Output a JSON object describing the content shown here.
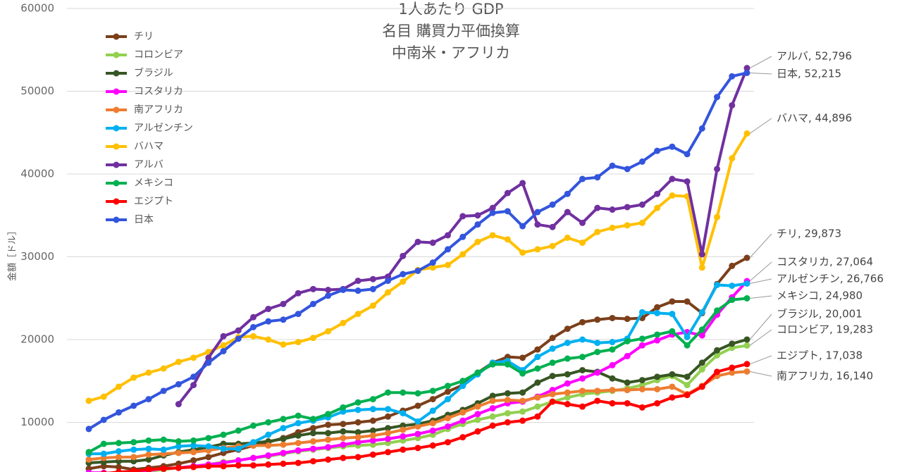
{
  "chart_data": {
    "type": "line",
    "title_lines": [
      "1人あたり GDP",
      "名目 購買力平価換算",
      "中南米・アフリカ"
    ],
    "y_label": "金額［ドル］",
    "ylim": [
      4000,
      60000
    ],
    "yticks": [
      10000,
      20000,
      30000,
      40000,
      50000,
      60000
    ],
    "grid": true,
    "legend": "upper left",
    "categories": [
      null,
      null,
      null,
      null,
      null,
      null,
      null,
      null,
      null,
      null,
      null,
      null,
      null,
      null,
      null,
      null,
      null,
      null,
      null,
      null,
      null,
      null,
      null,
      null,
      null,
      null,
      null,
      null,
      null,
      null,
      null,
      null,
      null,
      null,
      null,
      null,
      null,
      null,
      null,
      null,
      null,
      null,
      null,
      null,
      null
    ],
    "series": [
      {
        "name": "チリ",
        "color": "#7b3f1a",
        "values": [
          4400,
          4700,
          4600,
          4300,
          4500,
          4700,
          5000,
          5400,
          5800,
          6300,
          6700,
          7200,
          7600,
          8100,
          8800,
          9300,
          9700,
          9800,
          10000,
          10200,
          10700,
          11400,
          12000,
          12800,
          13700,
          14500,
          16000,
          17200,
          17900,
          17800,
          18800,
          20200,
          21300,
          22100,
          22400,
          22600,
          22500,
          22600,
          23900,
          24600,
          24600,
          23200,
          26700,
          28900,
          29873
        ],
        "value_labels": [
          null,
          null,
          null,
          null,
          null,
          null,
          null,
          null,
          null,
          null,
          null,
          null,
          null,
          null,
          null,
          null,
          null,
          null,
          null,
          null,
          null,
          null,
          null,
          null,
          null,
          null,
          null,
          null,
          null,
          null,
          null,
          null,
          null,
          null,
          null,
          null,
          null,
          null,
          null,
          null,
          null,
          null,
          null,
          null,
          "チリ, 29,873"
        ]
      },
      {
        "name": "コロンビア",
        "color": "#92d050",
        "values": [
          3600,
          3800,
          3900,
          4000,
          4100,
          4300,
          4500,
          4700,
          4900,
          5200,
          5400,
          5700,
          5900,
          6200,
          6500,
          6700,
          6900,
          7100,
          7200,
          7300,
          7500,
          7800,
          8100,
          8500,
          9200,
          9800,
          10300,
          10700,
          11100,
          11300,
          11900,
          12500,
          13000,
          13400,
          13600,
          13800,
          14100,
          14500,
          15100,
          15600,
          14500,
          16400,
          18100,
          19000,
          19283
        ],
        "value_labels": [
          null,
          null,
          null,
          null,
          null,
          null,
          null,
          null,
          null,
          null,
          null,
          null,
          null,
          null,
          null,
          null,
          null,
          null,
          null,
          null,
          null,
          null,
          null,
          null,
          null,
          null,
          null,
          null,
          null,
          null,
          null,
          null,
          null,
          null,
          null,
          null,
          null,
          null,
          null,
          null,
          null,
          null,
          null,
          null,
          "コロンビア, 19,283"
        ]
      },
      {
        "name": "ブラジル",
        "color": "#375623",
        "values": [
          5100,
          5200,
          5300,
          5300,
          5500,
          6000,
          6400,
          6700,
          7000,
          7400,
          7400,
          7500,
          7700,
          8000,
          8400,
          8700,
          8700,
          8900,
          8800,
          9000,
          9300,
          9600,
          9800,
          10200,
          10900,
          11500,
          12300,
          13200,
          13500,
          13600,
          14800,
          15600,
          15800,
          16300,
          16100,
          15300,
          14800,
          15100,
          15500,
          15800,
          15500,
          17200,
          18700,
          19500,
          20001
        ],
        "value_labels": [
          null,
          null,
          null,
          null,
          null,
          null,
          null,
          null,
          null,
          null,
          null,
          null,
          null,
          null,
          null,
          null,
          null,
          null,
          null,
          null,
          null,
          null,
          null,
          null,
          null,
          null,
          null,
          null,
          null,
          null,
          null,
          null,
          null,
          null,
          null,
          null,
          null,
          null,
          null,
          null,
          null,
          null,
          null,
          null,
          "ブラジル, 20,001"
        ]
      },
      {
        "name": "コスタリカ",
        "color": "#ff00ff",
        "values": [
          3900,
          3900,
          3800,
          4000,
          4200,
          4400,
          4500,
          4700,
          4900,
          5100,
          5400,
          5700,
          6000,
          6300,
          6600,
          6800,
          7000,
          7300,
          7600,
          7800,
          8000,
          8300,
          8600,
          9000,
          9500,
          10200,
          11000,
          11700,
          12300,
          12500,
          13100,
          13900,
          14700,
          15300,
          16000,
          16900,
          18000,
          19300,
          19900,
          20600,
          20900,
          20500,
          23000,
          25100,
          27064
        ],
        "value_labels": [
          null,
          null,
          null,
          null,
          null,
          null,
          null,
          null,
          null,
          null,
          null,
          null,
          null,
          null,
          null,
          null,
          null,
          null,
          null,
          null,
          null,
          null,
          null,
          null,
          null,
          null,
          null,
          null,
          null,
          null,
          null,
          null,
          null,
          null,
          null,
          null,
          null,
          null,
          null,
          null,
          null,
          null,
          null,
          null,
          "コスタリカ, 27,064"
        ]
      },
      {
        "name": "南アフリカ",
        "color": "#ed7d31",
        "values": [
          5500,
          5700,
          5800,
          5800,
          6100,
          6200,
          6300,
          6400,
          6600,
          6900,
          7100,
          7200,
          7200,
          7300,
          7500,
          7700,
          7900,
          8100,
          8200,
          8400,
          8700,
          9100,
          9500,
          9900,
          10500,
          11200,
          11900,
          12600,
          12700,
          12600,
          13000,
          13400,
          13600,
          13800,
          13800,
          13900,
          13900,
          14000,
          14000,
          14300,
          13400,
          14400,
          15600,
          16000,
          16140
        ],
        "value_labels": [
          null,
          null,
          null,
          null,
          null,
          null,
          null,
          null,
          null,
          null,
          null,
          null,
          null,
          null,
          null,
          null,
          null,
          null,
          null,
          null,
          null,
          null,
          null,
          null,
          null,
          null,
          null,
          null,
          null,
          null,
          null,
          null,
          null,
          null,
          null,
          null,
          null,
          null,
          null,
          null,
          null,
          null,
          null,
          null,
          "南アフリカ, 16,140"
        ]
      },
      {
        "name": "アルゼンチン",
        "color": "#00b0f0",
        "values": [
          6200,
          6200,
          6500,
          6700,
          6800,
          6700,
          7100,
          7200,
          7100,
          6800,
          6800,
          7600,
          8500,
          9300,
          9900,
          10200,
          10600,
          11300,
          11500,
          11600,
          11600,
          11100,
          10100,
          11400,
          12800,
          14400,
          15800,
          17200,
          17400,
          16300,
          17900,
          18900,
          19600,
          20000,
          19600,
          19700,
          20100,
          23300,
          23200,
          23100,
          20300,
          23300,
          26600,
          26500,
          26766
        ],
        "value_labels": [
          null,
          null,
          null,
          null,
          null,
          null,
          null,
          null,
          null,
          null,
          null,
          null,
          null,
          null,
          null,
          null,
          null,
          null,
          null,
          null,
          null,
          null,
          null,
          null,
          null,
          null,
          null,
          null,
          null,
          null,
          null,
          null,
          null,
          null,
          null,
          null,
          null,
          null,
          null,
          null,
          null,
          null,
          null,
          null,
          "アルゼンチン, 26,766"
        ]
      },
      {
        "name": "バハマ",
        "color": "#ffc000",
        "values": [
          12600,
          13100,
          14300,
          15400,
          16000,
          16500,
          17300,
          17800,
          18500,
          19300,
          20300,
          20400,
          20000,
          19400,
          19700,
          20200,
          21000,
          22000,
          23100,
          24100,
          25700,
          27000,
          28400,
          28700,
          29000,
          30300,
          31800,
          32600,
          32100,
          30500,
          30900,
          31300,
          32300,
          31700,
          33000,
          33500,
          33800,
          34100,
          35900,
          37400,
          37300,
          28700,
          34800,
          41900,
          44896
        ],
        "value_labels": [
          null,
          null,
          null,
          null,
          null,
          null,
          null,
          null,
          null,
          null,
          null,
          null,
          null,
          null,
          null,
          null,
          null,
          null,
          null,
          null,
          null,
          null,
          null,
          null,
          null,
          null,
          null,
          null,
          null,
          null,
          null,
          null,
          null,
          null,
          null,
          null,
          null,
          null,
          null,
          null,
          null,
          null,
          null,
          null,
          "バハマ, 44,896"
        ]
      },
      {
        "name": "アルバ",
        "color": "#7030a0",
        "values": [
          null,
          null,
          null,
          null,
          null,
          null,
          12200,
          14500,
          17800,
          20400,
          21100,
          22700,
          23700,
          24300,
          25600,
          26100,
          26000,
          26100,
          27100,
          27300,
          27600,
          30100,
          31800,
          31700,
          32600,
          34900,
          35000,
          35900,
          37700,
          38900,
          33900,
          33600,
          35400,
          34100,
          35900,
          35700,
          36000,
          36300,
          37600,
          39400,
          39100,
          30300,
          40600,
          48300,
          52796
        ],
        "value_labels": [
          null,
          null,
          null,
          null,
          null,
          null,
          null,
          null,
          null,
          null,
          null,
          null,
          null,
          null,
          null,
          null,
          null,
          null,
          null,
          null,
          null,
          null,
          null,
          null,
          null,
          null,
          null,
          null,
          null,
          null,
          null,
          null,
          null,
          null,
          null,
          null,
          null,
          null,
          null,
          null,
          null,
          null,
          null,
          null,
          "アルバ, 52,796"
        ]
      },
      {
        "name": "メキシコ",
        "color": "#00b050",
        "values": [
          6400,
          7400,
          7500,
          7600,
          7800,
          7900,
          7700,
          7800,
          8100,
          8500,
          9000,
          9600,
          10000,
          10400,
          10800,
          10400,
          11000,
          11800,
          12400,
          12800,
          13600,
          13600,
          13500,
          13800,
          14400,
          15000,
          16000,
          17000,
          17000,
          15900,
          16500,
          17200,
          17700,
          17900,
          18500,
          18800,
          19800,
          20100,
          20600,
          21000,
          19300,
          21200,
          23500,
          24800,
          24980
        ],
        "value_labels": [
          null,
          null,
          null,
          null,
          null,
          null,
          null,
          null,
          null,
          null,
          null,
          null,
          null,
          null,
          null,
          null,
          null,
          null,
          null,
          null,
          null,
          null,
          null,
          null,
          null,
          null,
          null,
          null,
          null,
          null,
          null,
          null,
          null,
          null,
          null,
          null,
          null,
          null,
          null,
          null,
          null,
          null,
          null,
          null,
          "メキシコ, 24,980"
        ]
      },
      {
        "name": "エジプト",
        "color": "#ff0000",
        "values": [
          3500,
          3800,
          4000,
          4100,
          4300,
          4400,
          4500,
          4600,
          4700,
          4700,
          4800,
          4800,
          4900,
          5000,
          5100,
          5300,
          5500,
          5700,
          5800,
          6100,
          6400,
          6700,
          6900,
          7200,
          7600,
          8200,
          8900,
          9600,
          10000,
          10200,
          10700,
          12500,
          12200,
          11900,
          12600,
          12300,
          12300,
          11800,
          12300,
          13000,
          13300,
          14300,
          16100,
          16600,
          17038
        ],
        "value_labels": [
          null,
          null,
          null,
          null,
          null,
          null,
          null,
          null,
          null,
          null,
          null,
          null,
          null,
          null,
          null,
          null,
          null,
          null,
          null,
          null,
          null,
          null,
          null,
          null,
          null,
          null,
          null,
          null,
          null,
          null,
          null,
          null,
          null,
          null,
          null,
          null,
          null,
          null,
          null,
          null,
          null,
          null,
          null,
          null,
          "エジプト, 17,038"
        ]
      },
      {
        "name": "日本",
        "color": "#3355dd",
        "values": [
          9200,
          10300,
          11200,
          12000,
          12800,
          13800,
          14600,
          15500,
          17200,
          18600,
          20100,
          21500,
          22200,
          22400,
          23100,
          24300,
          25300,
          26000,
          25900,
          26100,
          27100,
          27900,
          28300,
          29300,
          30900,
          32400,
          33900,
          35300,
          35500,
          33700,
          35400,
          36300,
          37600,
          39400,
          39600,
          41000,
          40600,
          41500,
          42800,
          43300,
          42400,
          45500,
          49300,
          51800,
          52215
        ],
        "value_labels": [
          null,
          null,
          null,
          null,
          null,
          null,
          null,
          null,
          null,
          null,
          null,
          null,
          null,
          null,
          null,
          null,
          null,
          null,
          null,
          null,
          null,
          null,
          null,
          null,
          null,
          null,
          null,
          null,
          null,
          null,
          null,
          null,
          null,
          null,
          null,
          null,
          null,
          null,
          null,
          null,
          null,
          null,
          null,
          null,
          "日本, 52,215"
        ]
      }
    ]
  }
}
